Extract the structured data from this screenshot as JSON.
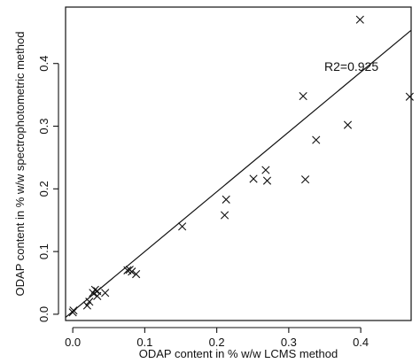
{
  "chart_data": {
    "type": "scatter",
    "title": "",
    "xlabel": "ODAP content in % w/w LCMS method",
    "ylabel": "ODAP content in % w/w spectrophotometric method",
    "xlim": [
      -0.01,
      0.47
    ],
    "ylim": [
      -0.01,
      0.49
    ],
    "x_ticks": [
      0.0,
      0.1,
      0.2,
      0.3,
      0.4
    ],
    "x_tick_labels": [
      "0.0",
      "0.1",
      "0.2",
      "0.3",
      "0.4"
    ],
    "y_ticks": [
      0.0,
      0.1,
      0.2,
      0.3,
      0.4
    ],
    "y_tick_labels": [
      "0.0",
      "0.1",
      "0.2",
      "0.3",
      "0.4"
    ],
    "grid": false,
    "legend": "none",
    "marker": "x",
    "marker_color": "#111111",
    "line_color": "#111111",
    "points": [
      {
        "x": 0.0,
        "y": 0.003
      },
      {
        "x": 0.001,
        "y": 0.006
      },
      {
        "x": 0.02,
        "y": 0.014
      },
      {
        "x": 0.023,
        "y": 0.02
      },
      {
        "x": 0.028,
        "y": 0.034
      },
      {
        "x": 0.031,
        "y": 0.039
      },
      {
        "x": 0.034,
        "y": 0.037
      },
      {
        "x": 0.034,
        "y": 0.029
      },
      {
        "x": 0.045,
        "y": 0.034
      },
      {
        "x": 0.076,
        "y": 0.07
      },
      {
        "x": 0.079,
        "y": 0.071
      },
      {
        "x": 0.082,
        "y": 0.068
      },
      {
        "x": 0.088,
        "y": 0.064
      },
      {
        "x": 0.152,
        "y": 0.14
      },
      {
        "x": 0.211,
        "y": 0.158
      },
      {
        "x": 0.213,
        "y": 0.183
      },
      {
        "x": 0.251,
        "y": 0.216
      },
      {
        "x": 0.268,
        "y": 0.23
      },
      {
        "x": 0.27,
        "y": 0.213
      },
      {
        "x": 0.32,
        "y": 0.348
      },
      {
        "x": 0.323,
        "y": 0.215
      },
      {
        "x": 0.338,
        "y": 0.278
      },
      {
        "x": 0.382,
        "y": 0.302
      },
      {
        "x": 0.399,
        "y": 0.47
      },
      {
        "x": 0.468,
        "y": 0.347
      }
    ],
    "fit_line": {
      "x": [
        -0.01,
        0.47
      ],
      "y": [
        -0.005,
        0.453
      ]
    },
    "annotation": "R2=0.925"
  }
}
